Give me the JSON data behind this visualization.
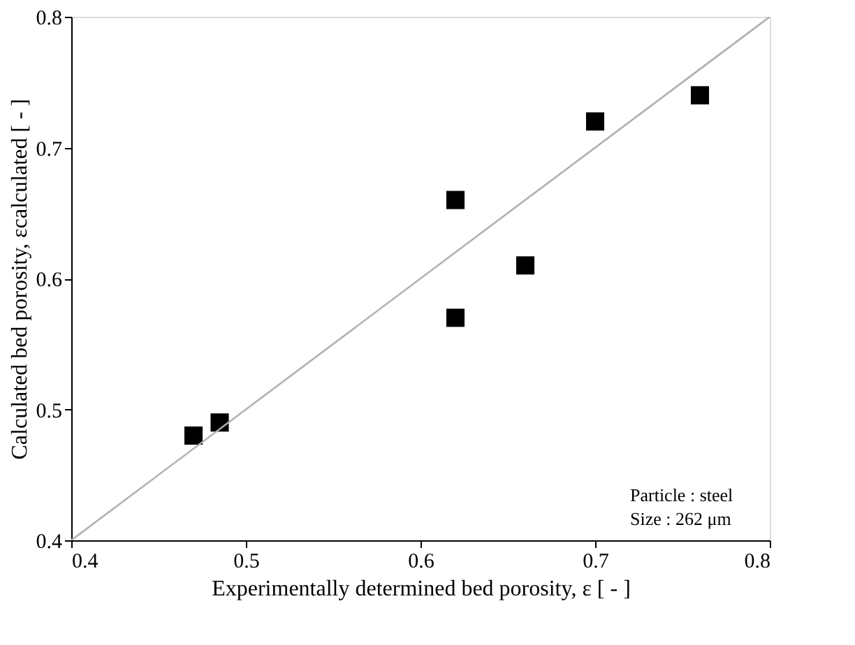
{
  "chart_data": {
    "type": "scatter",
    "xlabel": "Experimentally determined bed porosity, ε [ - ]",
    "ylabel": "Calculated bed porosity, εcalculated [ - ]",
    "xlim": [
      0.4,
      0.8
    ],
    "ylim": [
      0.4,
      0.8
    ],
    "xticks": [
      0.4,
      0.5,
      0.6,
      0.7,
      0.8
    ],
    "yticks": [
      0.4,
      0.5,
      0.6,
      0.7,
      0.8
    ],
    "grid": false,
    "marker": "square",
    "series": [
      {
        "color": "#000000",
        "x": [
          0.47,
          0.485,
          0.62,
          0.62,
          0.66,
          0.7,
          0.76
        ],
        "values": [
          0.48,
          0.49,
          0.66,
          0.57,
          0.61,
          0.72,
          0.74
        ]
      },
      {
        "type": "line",
        "marker": "none",
        "color": "#b0b0b0",
        "x": [
          0.4,
          0.8
        ],
        "values": [
          0.4,
          0.8
        ]
      }
    ],
    "annotations": [
      "Particle : steel",
      "Size : 262 μm"
    ]
  }
}
